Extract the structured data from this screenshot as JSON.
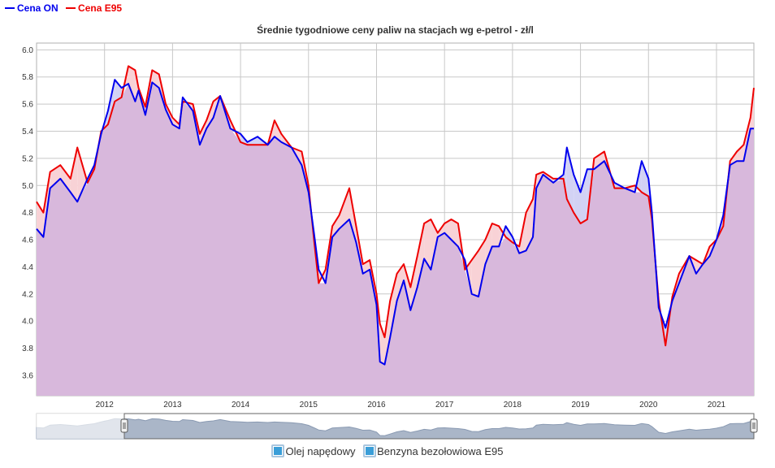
{
  "legend_top": {
    "on_label": "Cena ON",
    "e95_label": "Cena E95"
  },
  "colors": {
    "on": "#0000ee",
    "e95": "#ee0000",
    "purple_fill": "#d8b8dc",
    "on_above_fill": "#d2d2f4",
    "e95_above_fill": "#f8d2d6",
    "grid": "#c8c8c8",
    "navigator_fill": "#aab6c8"
  },
  "bottom_legend": {
    "items": [
      {
        "label": "Olej napędowy"
      },
      {
        "label": "Benzyna bezołowiowa E95"
      }
    ]
  },
  "chart_data": {
    "type": "line",
    "title": "Średnie tygodniowe ceny paliw na stacjach wg e-petrol - zł/l",
    "xlabel": "",
    "ylabel": "",
    "ylim": [
      3.45,
      6.05
    ],
    "xlim": [
      2011.0,
      2021.55
    ],
    "y_ticks": [
      "3.6",
      "3.8",
      "4.0",
      "4.2",
      "4.4",
      "4.6",
      "4.8",
      "5.0",
      "5.2",
      "5.4",
      "5.6",
      "5.8",
      "6.0"
    ],
    "x_ticks": [
      "2012",
      "2013",
      "2014",
      "2015",
      "2016",
      "2017",
      "2018",
      "2019",
      "2020",
      "2021"
    ],
    "grid": true,
    "legend_position": "top-left",
    "series": [
      {
        "name": "Cena ON",
        "x": [
          2011.0,
          2011.1,
          2011.2,
          2011.35,
          2011.5,
          2011.6,
          2011.75,
          2011.85,
          2011.95,
          2012.05,
          2012.15,
          2012.25,
          2012.35,
          2012.45,
          2012.5,
          2012.6,
          2012.7,
          2012.8,
          2012.9,
          2013.0,
          2013.1,
          2013.15,
          2013.3,
          2013.4,
          2013.5,
          2013.6,
          2013.7,
          2013.85,
          2014.0,
          2014.1,
          2014.25,
          2014.4,
          2014.5,
          2014.6,
          2014.75,
          2014.9,
          2015.0,
          2015.08,
          2015.15,
          2015.25,
          2015.35,
          2015.45,
          2015.6,
          2015.7,
          2015.8,
          2015.9,
          2016.0,
          2016.05,
          2016.12,
          2016.2,
          2016.3,
          2016.4,
          2016.5,
          2016.6,
          2016.7,
          2016.8,
          2016.9,
          2017.0,
          2017.1,
          2017.2,
          2017.3,
          2017.4,
          2017.5,
          2017.6,
          2017.7,
          2017.8,
          2017.9,
          2018.0,
          2018.1,
          2018.2,
          2018.3,
          2018.35,
          2018.45,
          2018.6,
          2018.75,
          2018.8,
          2018.9,
          2019.0,
          2019.1,
          2019.2,
          2019.35,
          2019.5,
          2019.65,
          2019.8,
          2019.9,
          2020.0,
          2020.05,
          2020.15,
          2020.25,
          2020.35,
          2020.45,
          2020.6,
          2020.7,
          2020.8,
          2020.9,
          2021.0,
          2021.1,
          2021.2,
          2021.3,
          2021.4,
          2021.5,
          2021.55
        ],
        "values": [
          4.68,
          4.62,
          4.98,
          5.05,
          4.95,
          4.88,
          5.05,
          5.15,
          5.38,
          5.55,
          5.78,
          5.72,
          5.75,
          5.62,
          5.7,
          5.52,
          5.76,
          5.72,
          5.56,
          5.45,
          5.42,
          5.65,
          5.55,
          5.3,
          5.42,
          5.5,
          5.66,
          5.42,
          5.38,
          5.32,
          5.36,
          5.3,
          5.36,
          5.32,
          5.28,
          5.15,
          4.95,
          4.65,
          4.38,
          4.28,
          4.62,
          4.68,
          4.75,
          4.58,
          4.35,
          4.38,
          4.12,
          3.7,
          3.68,
          3.88,
          4.15,
          4.3,
          4.08,
          4.25,
          4.46,
          4.38,
          4.62,
          4.65,
          4.6,
          4.55,
          4.45,
          4.2,
          4.18,
          4.42,
          4.55,
          4.55,
          4.7,
          4.62,
          4.5,
          4.52,
          4.62,
          4.98,
          5.08,
          5.02,
          5.08,
          5.28,
          5.08,
          4.95,
          5.12,
          5.12,
          5.18,
          5.02,
          4.98,
          4.95,
          5.18,
          5.05,
          4.8,
          4.1,
          3.95,
          4.15,
          4.28,
          4.48,
          4.35,
          4.42,
          4.48,
          4.6,
          4.78,
          5.15,
          5.18,
          5.18,
          5.42,
          5.42
        ]
      },
      {
        "name": "Cena E95",
        "x": [
          2011.0,
          2011.1,
          2011.2,
          2011.35,
          2011.5,
          2011.6,
          2011.75,
          2011.85,
          2011.95,
          2012.05,
          2012.15,
          2012.25,
          2012.35,
          2012.45,
          2012.5,
          2012.6,
          2012.7,
          2012.8,
          2012.9,
          2013.0,
          2013.1,
          2013.15,
          2013.3,
          2013.4,
          2013.5,
          2013.6,
          2013.7,
          2013.85,
          2014.0,
          2014.1,
          2014.25,
          2014.4,
          2014.5,
          2014.6,
          2014.75,
          2014.9,
          2015.0,
          2015.08,
          2015.15,
          2015.25,
          2015.35,
          2015.45,
          2015.6,
          2015.7,
          2015.8,
          2015.9,
          2016.0,
          2016.05,
          2016.12,
          2016.2,
          2016.3,
          2016.4,
          2016.5,
          2016.6,
          2016.7,
          2016.8,
          2016.9,
          2017.0,
          2017.1,
          2017.2,
          2017.3,
          2017.4,
          2017.5,
          2017.6,
          2017.7,
          2017.8,
          2017.9,
          2018.0,
          2018.1,
          2018.2,
          2018.3,
          2018.35,
          2018.45,
          2018.6,
          2018.75,
          2018.8,
          2018.9,
          2019.0,
          2019.1,
          2019.2,
          2019.35,
          2019.5,
          2019.65,
          2019.8,
          2019.9,
          2020.0,
          2020.05,
          2020.15,
          2020.25,
          2020.35,
          2020.45,
          2020.6,
          2020.7,
          2020.8,
          2020.9,
          2021.0,
          2021.1,
          2021.2,
          2021.3,
          2021.4,
          2021.5,
          2021.55
        ],
        "values": [
          4.88,
          4.8,
          5.1,
          5.15,
          5.05,
          5.28,
          5.02,
          5.12,
          5.4,
          5.45,
          5.62,
          5.65,
          5.88,
          5.85,
          5.72,
          5.58,
          5.85,
          5.82,
          5.6,
          5.5,
          5.45,
          5.62,
          5.6,
          5.38,
          5.48,
          5.62,
          5.66,
          5.48,
          5.32,
          5.3,
          5.3,
          5.3,
          5.48,
          5.38,
          5.28,
          5.25,
          5.0,
          4.6,
          4.28,
          4.38,
          4.7,
          4.78,
          4.98,
          4.7,
          4.42,
          4.45,
          4.2,
          3.98,
          3.88,
          4.15,
          4.35,
          4.42,
          4.25,
          4.48,
          4.72,
          4.75,
          4.65,
          4.72,
          4.75,
          4.72,
          4.38,
          4.45,
          4.52,
          4.6,
          4.72,
          4.7,
          4.62,
          4.58,
          4.55,
          4.8,
          4.9,
          5.08,
          5.1,
          5.05,
          5.05,
          4.9,
          4.8,
          4.72,
          4.75,
          5.2,
          5.25,
          4.98,
          4.98,
          5.0,
          4.95,
          4.92,
          4.75,
          4.15,
          3.82,
          4.18,
          4.35,
          4.48,
          4.45,
          4.42,
          4.55,
          4.6,
          4.7,
          5.18,
          5.25,
          5.3,
          5.5,
          5.72
        ]
      }
    ]
  }
}
